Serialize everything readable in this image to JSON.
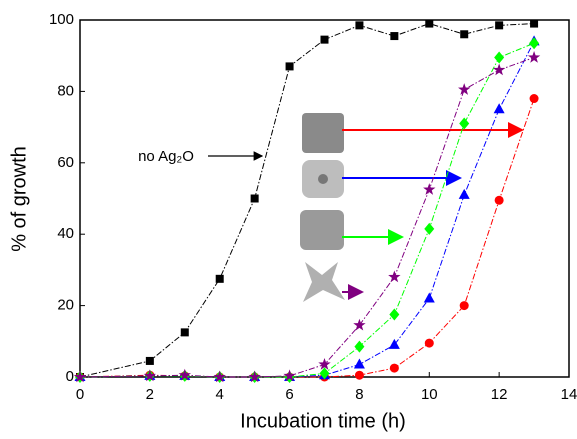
{
  "chart_data": {
    "type": "line",
    "xlabel": "Incubation time (h)",
    "ylabel": "% of growth",
    "annotation": "no Ag₂O",
    "x": [
      0,
      2,
      3,
      4,
      5,
      6,
      7,
      8,
      9,
      10,
      11,
      12,
      13
    ],
    "series": [
      {
        "marker": "square",
        "color": "#000000",
        "values": [
          0,
          4.5,
          12.5,
          27.5,
          50,
          87,
          94.5,
          98.5,
          95.5,
          99,
          96,
          98.5,
          99
        ]
      },
      {
        "marker": "circle",
        "color": "#ff0000",
        "values": [
          0,
          0.5,
          0.3,
          0,
          0,
          0,
          0,
          0.5,
          2.5,
          9.5,
          20,
          49.5,
          78
        ]
      },
      {
        "marker": "triangle",
        "color": "#0000ff",
        "values": [
          0,
          0.3,
          0.3,
          0,
          0,
          0,
          0.5,
          3.5,
          9,
          22,
          51,
          75,
          94
        ]
      },
      {
        "marker": "diamond",
        "color": "#00ff00",
        "values": [
          0,
          0.3,
          0.3,
          0,
          0,
          0,
          1,
          8.5,
          17.5,
          41.5,
          71,
          89.5,
          93.5
        ]
      },
      {
        "marker": "star",
        "color": "#800080",
        "values": [
          0,
          0.3,
          0.5,
          0,
          0,
          0.3,
          3.5,
          14.5,
          28,
          52.5,
          80.5,
          86,
          89.5
        ]
      }
    ],
    "xlim": [
      0,
      14
    ],
    "xticks": [
      0,
      2,
      4,
      6,
      8,
      10,
      12,
      14
    ],
    "ylim": [
      0,
      100
    ],
    "yticks": [
      0,
      20,
      40,
      60,
      80,
      100
    ]
  }
}
